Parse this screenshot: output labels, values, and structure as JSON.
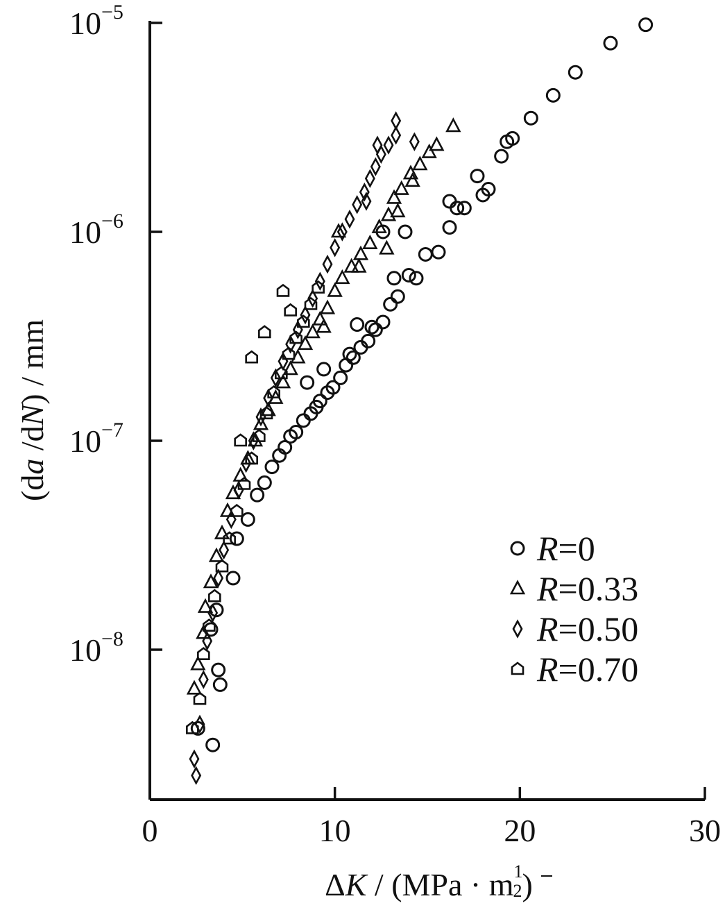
{
  "chart_data": {
    "type": "scatter",
    "x_scale": "linear",
    "y_scale": "log",
    "xlim": [
      0,
      30
    ],
    "ylim": [
      2e-09,
      1e-05
    ],
    "x_ticks": [
      {
        "value": 0,
        "label": "0"
      },
      {
        "value": 10,
        "label": "10"
      },
      {
        "value": 20,
        "label": "20"
      },
      {
        "value": 30,
        "label": "30"
      }
    ],
    "y_ticks": [
      {
        "value": 1e-05,
        "base": "10",
        "exp": "−5"
      },
      {
        "value": 1e-06,
        "base": "10",
        "exp": "−6"
      },
      {
        "value": 1e-07,
        "base": "10",
        "exp": "−7"
      },
      {
        "value": 1e-08,
        "base": "10",
        "exp": "−8"
      }
    ],
    "xlabel": {
      "delta": "Δ",
      "var": "K",
      "rest": " / (MPa · m",
      "exp_num": "1",
      "exp_den": "2",
      "close": ")"
    },
    "ylabel": {
      "open": "(d",
      "var1": "a",
      "mid": " /d",
      "var2": "N",
      "rest": ") / mm"
    },
    "legend_position": "lower-right",
    "series": [
      {
        "name": "R=0",
        "label_var": "R",
        "label_rest": "=0",
        "marker": "circle",
        "points": [
          [
            2.6,
            4.2e-09
          ],
          [
            3.4,
            3.5e-09
          ],
          [
            3.8,
            6.8e-09
          ],
          [
            3.7,
            8e-09
          ],
          [
            3.3,
            1.25e-08
          ],
          [
            3.6,
            1.55e-08
          ],
          [
            4.5,
            2.2e-08
          ],
          [
            4.7,
            3.4e-08
          ],
          [
            5.3,
            4.2e-08
          ],
          [
            5.8,
            5.5e-08
          ],
          [
            6.2,
            6.3e-08
          ],
          [
            6.6,
            7.5e-08
          ],
          [
            7.0,
            8.5e-08
          ],
          [
            7.3,
            9.3e-08
          ],
          [
            7.6,
            1.05e-07
          ],
          [
            7.9,
            1.1e-07
          ],
          [
            8.3,
            1.25e-07
          ],
          [
            8.7,
            1.35e-07
          ],
          [
            9.0,
            1.45e-07
          ],
          [
            9.2,
            1.55e-07
          ],
          [
            9.6,
            1.7e-07
          ],
          [
            9.9,
            1.8e-07
          ],
          [
            10.3,
            2e-07
          ],
          [
            10.6,
            2.3e-07
          ],
          [
            11.0,
            2.5e-07
          ],
          [
            11.4,
            2.8e-07
          ],
          [
            11.8,
            3e-07
          ],
          [
            12.2,
            3.4e-07
          ],
          [
            12.6,
            3.7e-07
          ],
          [
            13.0,
            4.5e-07
          ],
          [
            13.4,
            4.9e-07
          ],
          [
            13.2,
            6e-07
          ],
          [
            14.0,
            6.2e-07
          ],
          [
            14.4,
            6e-07
          ],
          [
            12.6,
            1e-06
          ],
          [
            13.8,
            1e-06
          ],
          [
            14.9,
            7.8e-07
          ],
          [
            15.6,
            8e-07
          ],
          [
            16.2,
            1.05e-06
          ],
          [
            16.6,
            1.3e-06
          ],
          [
            17.0,
            1.3e-06
          ],
          [
            16.2,
            1.4e-06
          ],
          [
            18.0,
            1.5e-06
          ],
          [
            18.3,
            1.6e-06
          ],
          [
            17.7,
            1.85e-06
          ],
          [
            19.0,
            2.3e-06
          ],
          [
            19.3,
            2.7e-06
          ],
          [
            19.6,
            2.8e-06
          ],
          [
            20.6,
            3.5e-06
          ],
          [
            21.8,
            4.5e-06
          ],
          [
            23.0,
            5.8e-06
          ],
          [
            24.9,
            8e-06
          ],
          [
            26.8,
            9.8e-06
          ],
          [
            12.0,
            3.5e-07
          ],
          [
            11.2,
            3.6e-07
          ],
          [
            10.8,
            2.6e-07
          ],
          [
            8.5,
            1.9e-07
          ],
          [
            9.4,
            2.2e-07
          ]
        ]
      },
      {
        "name": "R=0.33",
        "label_var": "R",
        "label_rest": "=0.33",
        "marker": "triangle",
        "points": [
          [
            2.4,
            6.5e-09
          ],
          [
            2.6,
            8.5e-09
          ],
          [
            2.9,
            1.2e-08
          ],
          [
            3.0,
            1.6e-08
          ],
          [
            3.3,
            2.1e-08
          ],
          [
            3.6,
            2.8e-08
          ],
          [
            3.9,
            3.6e-08
          ],
          [
            4.2,
            4.6e-08
          ],
          [
            4.5,
            5.6e-08
          ],
          [
            4.9,
            6.8e-08
          ],
          [
            5.3,
            8.2e-08
          ],
          [
            5.7,
            1e-07
          ],
          [
            6.0,
            1.2e-07
          ],
          [
            6.4,
            1.4e-07
          ],
          [
            6.8,
            1.6e-07
          ],
          [
            7.2,
            1.9e-07
          ],
          [
            7.6,
            2.2e-07
          ],
          [
            8.0,
            2.5e-07
          ],
          [
            8.4,
            2.9e-07
          ],
          [
            8.8,
            3.3e-07
          ],
          [
            9.2,
            3.8e-07
          ],
          [
            9.6,
            4.3e-07
          ],
          [
            10.0,
            5.2e-07
          ],
          [
            10.4,
            6e-07
          ],
          [
            10.9,
            6.8e-07
          ],
          [
            11.4,
            7.8e-07
          ],
          [
            11.9,
            8.8e-07
          ],
          [
            12.4,
            1.05e-06
          ],
          [
            12.9,
            1.2e-06
          ],
          [
            13.2,
            1.45e-06
          ],
          [
            13.6,
            1.6e-06
          ],
          [
            14.1,
            1.9e-06
          ],
          [
            14.6,
            2.1e-06
          ],
          [
            15.1,
            2.4e-06
          ],
          [
            15.5,
            2.6e-06
          ],
          [
            16.4,
            3.2e-06
          ],
          [
            10.2,
            1e-06
          ],
          [
            11.3,
            6.8e-07
          ],
          [
            12.8,
            8.3e-07
          ],
          [
            13.4,
            1.25e-06
          ],
          [
            14.2,
            1.75e-06
          ],
          [
            9.4,
            3.5e-07
          ]
        ]
      },
      {
        "name": "R=0.50",
        "label_var": "R",
        "label_rest": "=0.50",
        "marker": "diamond",
        "points": [
          [
            2.5,
            2.5e-09
          ],
          [
            2.4,
            3e-09
          ],
          [
            2.7,
            4.4e-09
          ],
          [
            2.9,
            7.2e-09
          ],
          [
            3.1,
            1.1e-08
          ],
          [
            3.4,
            1.5e-08
          ],
          [
            3.7,
            2.2e-08
          ],
          [
            4.0,
            3e-08
          ],
          [
            4.4,
            4.2e-08
          ],
          [
            4.8,
            5.8e-08
          ],
          [
            5.2,
            7.8e-08
          ],
          [
            5.6,
            1e-07
          ],
          [
            6.0,
            1.3e-07
          ],
          [
            6.4,
            1.6e-07
          ],
          [
            6.8,
            2e-07
          ],
          [
            7.2,
            2.4e-07
          ],
          [
            7.6,
            2.9e-07
          ],
          [
            8.0,
            3.4e-07
          ],
          [
            8.4,
            4e-07
          ],
          [
            8.8,
            4.8e-07
          ],
          [
            9.2,
            5.8e-07
          ],
          [
            9.6,
            7e-07
          ],
          [
            10.0,
            8.4e-07
          ],
          [
            10.4,
            1e-06
          ],
          [
            10.8,
            1.15e-06
          ],
          [
            11.2,
            1.35e-06
          ],
          [
            11.6,
            1.55e-06
          ],
          [
            11.9,
            1.8e-06
          ],
          [
            12.2,
            2.05e-06
          ],
          [
            12.5,
            2.35e-06
          ],
          [
            12.9,
            2.6e-06
          ],
          [
            13.3,
            2.9e-06
          ],
          [
            14.3,
            2.7e-06
          ],
          [
            13.3,
            3.4e-06
          ],
          [
            12.3,
            2.6e-06
          ],
          [
            11.7,
            1.4e-06
          ]
        ]
      },
      {
        "name": "R=0.70",
        "label_var": "R",
        "label_rest": "=0.70",
        "marker": "pentagon",
        "points": [
          [
            2.3,
            4.2e-09
          ],
          [
            2.7,
            5.8e-09
          ],
          [
            2.9,
            9.5e-09
          ],
          [
            3.2,
            1.3e-08
          ],
          [
            3.5,
            1.8e-08
          ],
          [
            3.9,
            2.5e-08
          ],
          [
            4.3,
            3.4e-08
          ],
          [
            4.7,
            4.6e-08
          ],
          [
            5.1,
            6.2e-08
          ],
          [
            5.5,
            8.2e-08
          ],
          [
            5.9,
            1.05e-07
          ],
          [
            6.3,
            1.35e-07
          ],
          [
            6.7,
            1.7e-07
          ],
          [
            7.1,
            2.1e-07
          ],
          [
            7.5,
            2.6e-07
          ],
          [
            7.9,
            3.1e-07
          ],
          [
            8.3,
            3.7e-07
          ],
          [
            8.7,
            4.5e-07
          ],
          [
            9.1,
            5.4e-07
          ],
          [
            6.2,
            3.3e-07
          ],
          [
            7.2,
            5.2e-07
          ],
          [
            7.6,
            4.2e-07
          ],
          [
            4.9,
            1e-07
          ],
          [
            5.5,
            2.5e-07
          ]
        ]
      }
    ]
  }
}
